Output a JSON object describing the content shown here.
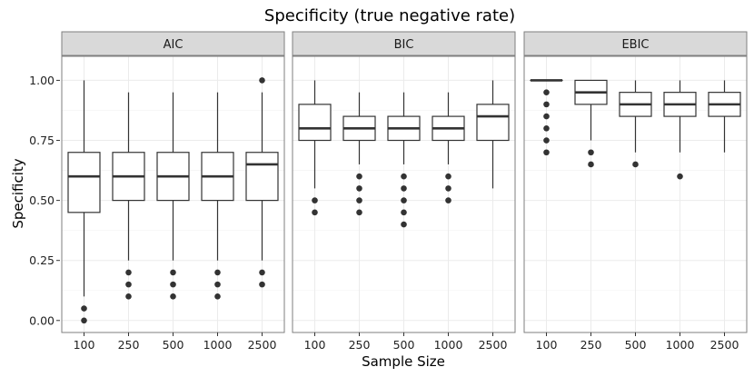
{
  "chart_data": {
    "type": "boxplot",
    "title": "Specificity (true negative rate)",
    "xlabel": "Sample Size",
    "ylabel": "Specificity",
    "ylim": [
      -0.05,
      1.1
    ],
    "yticks": [
      0.0,
      0.25,
      0.5,
      0.75,
      1.0
    ],
    "ytick_labels": [
      "0.00",
      "0.25",
      "0.50",
      "0.75",
      "1.00"
    ],
    "categories": [
      "100",
      "250",
      "500",
      "1000",
      "2500"
    ],
    "grid": true,
    "facets": [
      {
        "label": "AIC",
        "boxes": [
          {
            "category": "100",
            "lower_whisker": 0.1,
            "q1": 0.45,
            "median": 0.6,
            "q3": 0.7,
            "upper_whisker": 1.0,
            "outliers": [
              0.05,
              0.0
            ]
          },
          {
            "category": "250",
            "lower_whisker": 0.25,
            "q1": 0.5,
            "median": 0.6,
            "q3": 0.7,
            "upper_whisker": 0.95,
            "outliers": [
              0.2,
              0.15,
              0.1
            ]
          },
          {
            "category": "500",
            "lower_whisker": 0.25,
            "q1": 0.5,
            "median": 0.6,
            "q3": 0.7,
            "upper_whisker": 0.95,
            "outliers": [
              0.2,
              0.15,
              0.1
            ]
          },
          {
            "category": "1000",
            "lower_whisker": 0.25,
            "q1": 0.5,
            "median": 0.6,
            "q3": 0.7,
            "upper_whisker": 0.95,
            "outliers": [
              0.2,
              0.15,
              0.1
            ]
          },
          {
            "category": "2500",
            "lower_whisker": 0.25,
            "q1": 0.5,
            "median": 0.65,
            "q3": 0.7,
            "upper_whisker": 0.95,
            "outliers": [
              1.0,
              0.2,
              0.15
            ]
          }
        ]
      },
      {
        "label": "BIC",
        "boxes": [
          {
            "category": "100",
            "lower_whisker": 0.55,
            "q1": 0.75,
            "median": 0.8,
            "q3": 0.9,
            "upper_whisker": 1.0,
            "outliers": [
              0.5,
              0.45
            ]
          },
          {
            "category": "250",
            "lower_whisker": 0.65,
            "q1": 0.75,
            "median": 0.8,
            "q3": 0.85,
            "upper_whisker": 0.95,
            "outliers": [
              0.6,
              0.55,
              0.5,
              0.45
            ]
          },
          {
            "category": "500",
            "lower_whisker": 0.65,
            "q1": 0.75,
            "median": 0.8,
            "q3": 0.85,
            "upper_whisker": 0.95,
            "outliers": [
              0.6,
              0.55,
              0.5,
              0.45,
              0.4
            ]
          },
          {
            "category": "1000",
            "lower_whisker": 0.65,
            "q1": 0.75,
            "median": 0.8,
            "q3": 0.85,
            "upper_whisker": 0.95,
            "outliers": [
              0.6,
              0.55,
              0.5
            ]
          },
          {
            "category": "2500",
            "lower_whisker": 0.55,
            "q1": 0.75,
            "median": 0.85,
            "q3": 0.9,
            "upper_whisker": 1.0,
            "outliers": []
          }
        ]
      },
      {
        "label": "EBIC",
        "boxes": [
          {
            "category": "100",
            "lower_whisker": 1.0,
            "q1": 1.0,
            "median": 1.0,
            "q3": 1.0,
            "upper_whisker": 1.0,
            "outliers": [
              0.95,
              0.9,
              0.85,
              0.8,
              0.75,
              0.7
            ]
          },
          {
            "category": "250",
            "lower_whisker": 0.75,
            "q1": 0.9,
            "median": 0.95,
            "q3": 1.0,
            "upper_whisker": 1.0,
            "outliers": [
              0.7,
              0.65
            ]
          },
          {
            "category": "500",
            "lower_whisker": 0.7,
            "q1": 0.85,
            "median": 0.9,
            "q3": 0.95,
            "upper_whisker": 1.0,
            "outliers": [
              0.65
            ]
          },
          {
            "category": "1000",
            "lower_whisker": 0.7,
            "q1": 0.85,
            "median": 0.9,
            "q3": 0.95,
            "upper_whisker": 1.0,
            "outliers": [
              0.6
            ]
          },
          {
            "category": "2500",
            "lower_whisker": 0.7,
            "q1": 0.85,
            "median": 0.9,
            "q3": 0.95,
            "upper_whisker": 1.0,
            "outliers": []
          }
        ]
      }
    ],
    "colors": {
      "panel_background": "#ffffff",
      "grid_major": "#ebebeb",
      "grid_minor": "#f5f5f5",
      "panel_border": "#7f7f7f",
      "strip_background": "#d9d9d9",
      "box_line": "#333333",
      "outlier": "#333333"
    }
  }
}
